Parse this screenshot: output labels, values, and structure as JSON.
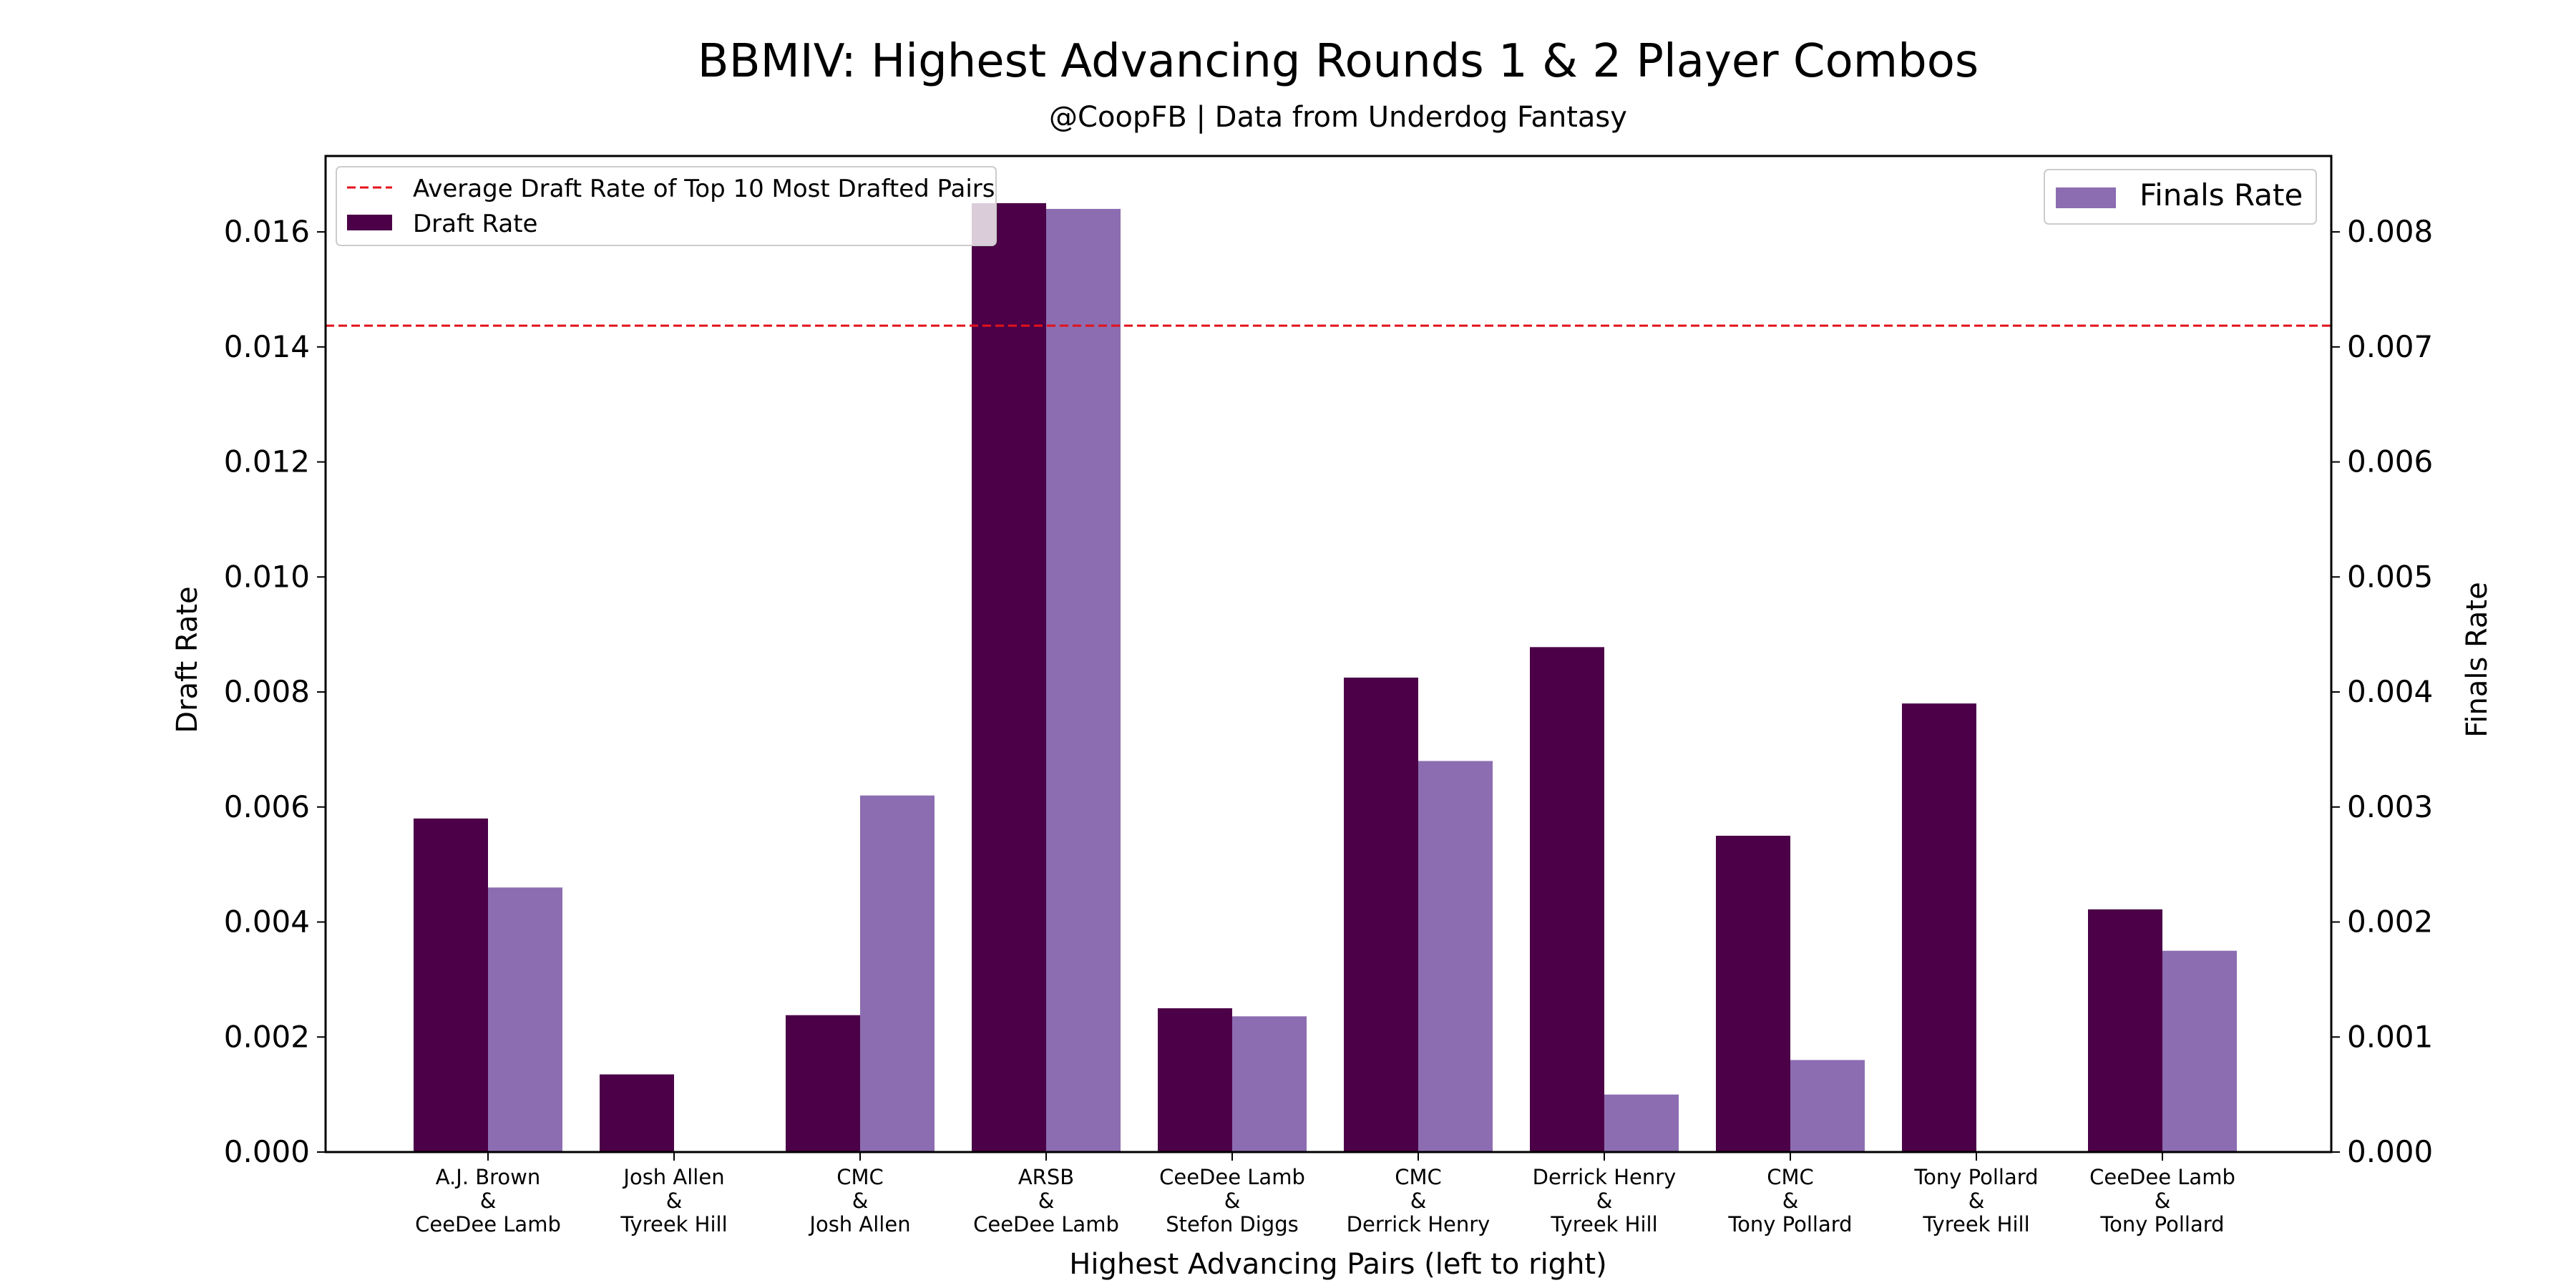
{
  "chart_data": {
    "type": "bar",
    "title": "BBMIV: Highest Advancing Rounds 1 & 2 Player Combos",
    "subtitle": "@CoopFB | Data from Underdog Fantasy",
    "xlabel": "Highest Advancing Pairs (left to right)",
    "ylabel": "Draft Rate",
    "y2label": "Finals Rate",
    "categories": [
      [
        "A.J. Brown",
        "&",
        "CeeDee Lamb"
      ],
      [
        "Josh Allen",
        "&",
        "Tyreek Hill"
      ],
      [
        "CMC",
        "&",
        "Josh Allen"
      ],
      [
        "ARSB",
        "&",
        "CeeDee Lamb"
      ],
      [
        "CeeDee Lamb",
        "&",
        "Stefon Diggs"
      ],
      [
        "CMC",
        "&",
        "Derrick Henry"
      ],
      [
        "Derrick Henry",
        "&",
        "Tyreek Hill"
      ],
      [
        "CMC",
        "&",
        "Tony Pollard"
      ],
      [
        "Tony Pollard",
        "&",
        "Tyreek Hill"
      ],
      [
        "CeeDee Lamb",
        "&",
        "Tony Pollard"
      ]
    ],
    "series": [
      {
        "name": "Draft Rate",
        "axis": "left",
        "color": "#4b0047",
        "values": [
          0.0058,
          0.00135,
          0.00238,
          0.0165,
          0.0025,
          0.00825,
          0.00878,
          0.0055,
          0.0078,
          0.00422
        ]
      },
      {
        "name": "Finals Rate",
        "axis": "right",
        "color": "#8c6db1",
        "values": [
          0.0023,
          0.0,
          0.0031,
          0.0082,
          0.00118,
          0.0034,
          0.0005,
          0.0008,
          0.0,
          0.00175
        ]
      }
    ],
    "reference_line": {
      "name": "Average Draft Rate of Top 10 Most Drafted Pairs",
      "axis": "left",
      "value": 0.01437,
      "color": "#e3121b",
      "style": "dashed"
    },
    "ylim": [
      0,
      0.01732
    ],
    "y2lim": [
      0,
      0.00866
    ],
    "yticks": [
      "0.000",
      "0.002",
      "0.004",
      "0.006",
      "0.008",
      "0.010",
      "0.012",
      "0.014",
      "0.016"
    ],
    "y2ticks": [
      "0.000",
      "0.001",
      "0.002",
      "0.003",
      "0.004",
      "0.005",
      "0.006",
      "0.007",
      "0.008"
    ],
    "legend_left_placement": "top-left",
    "legend_right_placement": "top-right",
    "grid": false
  }
}
